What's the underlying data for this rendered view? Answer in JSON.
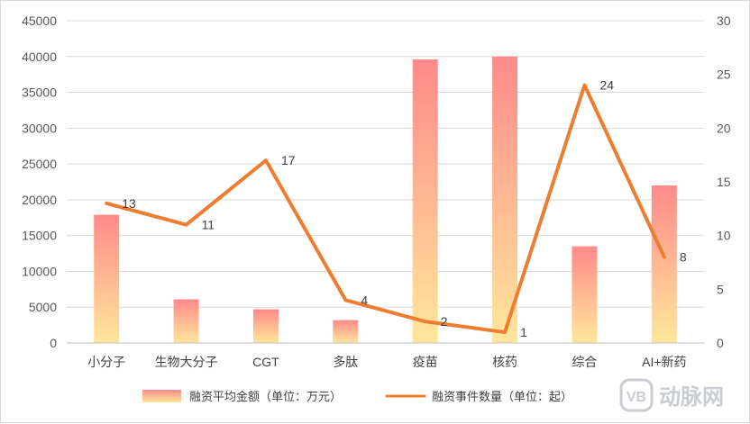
{
  "chart_data": {
    "type": "bar",
    "categories": [
      "小分子",
      "生物大分子",
      "CGT",
      "多肽",
      "疫苗",
      "核药",
      "综合",
      "AI+新药"
    ],
    "series": [
      {
        "name": "融资平均金额（单位：万元）",
        "type": "bar",
        "axis": "left",
        "values": [
          17900,
          6100,
          4700,
          3200,
          39600,
          40000,
          13500,
          22000
        ]
      },
      {
        "name": "融资事件数量（单位：起）",
        "type": "line",
        "axis": "right",
        "values": [
          13,
          11,
          17,
          4,
          2,
          1,
          24,
          8
        ],
        "color": "#ED7D31"
      }
    ],
    "ylim_left": [
      0,
      45000
    ],
    "yticks_left": [
      "0",
      "5000",
      "10000",
      "15000",
      "20000",
      "25000",
      "30000",
      "35000",
      "40000",
      "45000"
    ],
    "ylim_right": [
      0,
      30
    ],
    "yticks_right": [
      "0",
      "5",
      "10",
      "15",
      "20",
      "25",
      "30"
    ],
    "bar_gradient": {
      "top": "#FF8A8A",
      "bottom": "#FFE79B"
    },
    "grid": true,
    "legend_position": "bottom"
  },
  "watermark": {
    "icon_text": "VB",
    "text": "动脉网"
  }
}
